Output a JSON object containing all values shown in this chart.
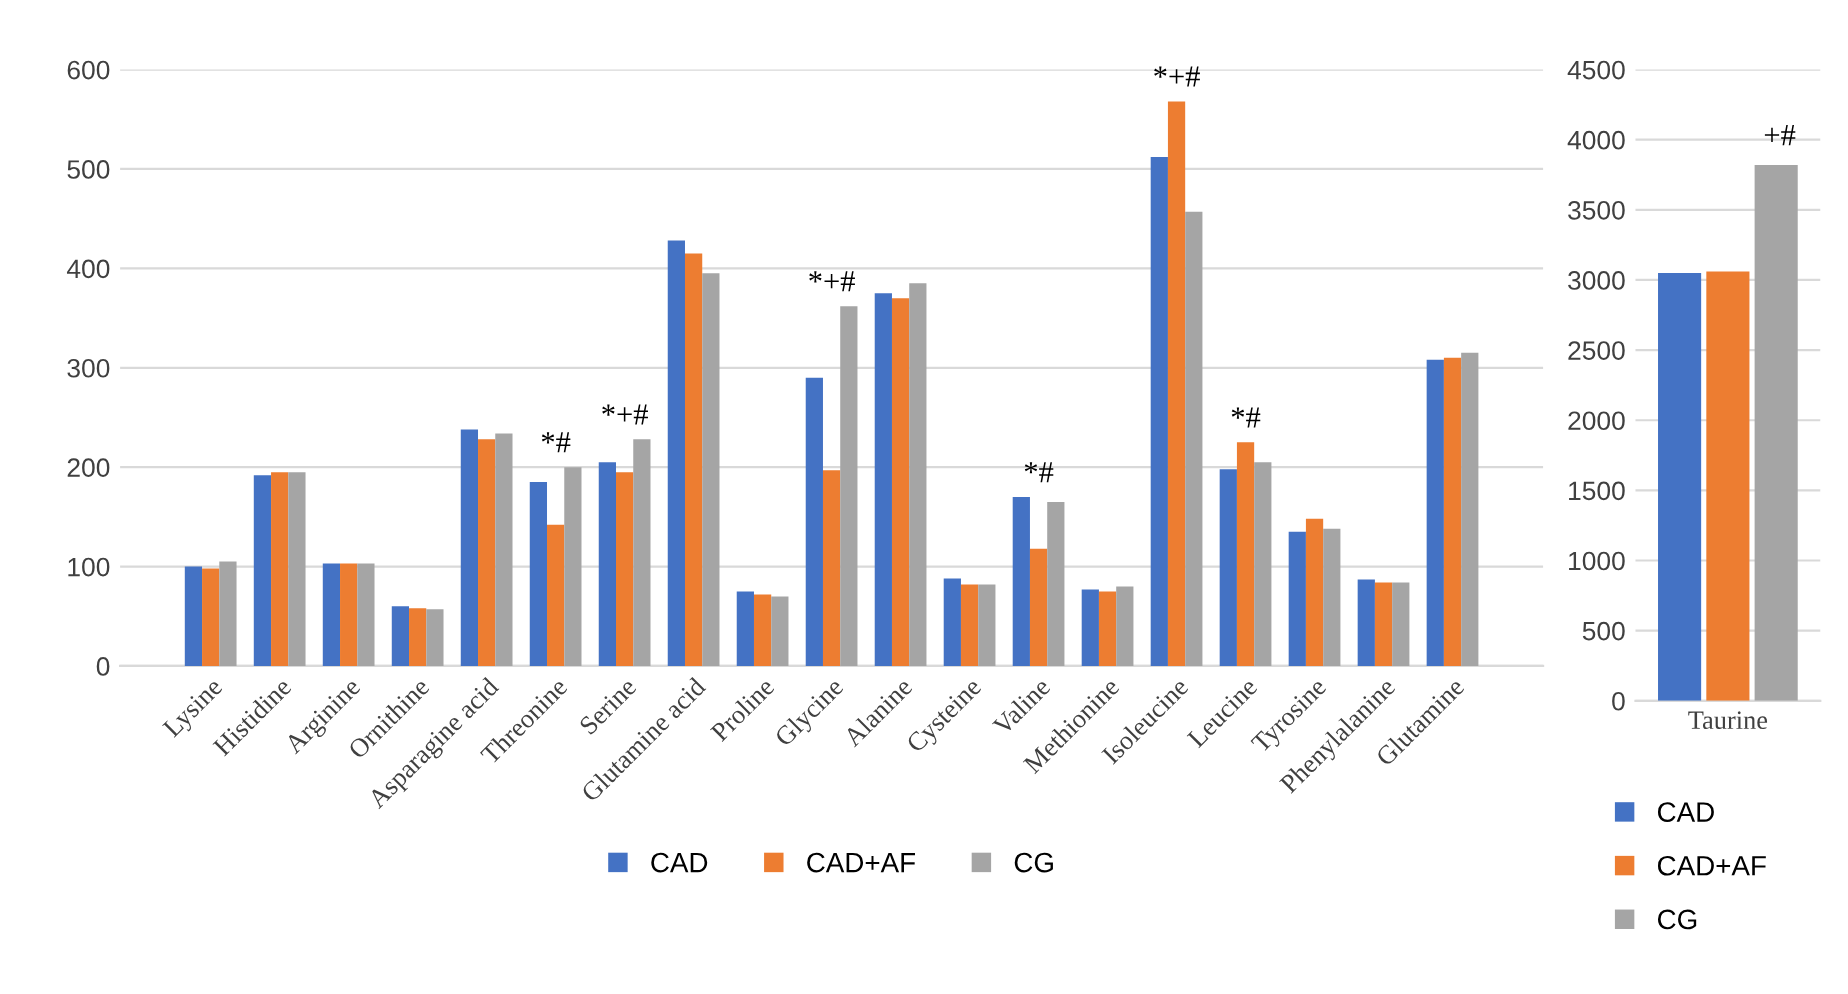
{
  "chart_data": [
    {
      "type": "bar",
      "categories": [
        "Lysine",
        "Histidine",
        "Arginine",
        "Ornithine",
        "Asparagine acid",
        "Threonine",
        "Serine",
        "Glutamine acid",
        "Proline",
        "Glycine",
        "Alanine",
        "Cysteine",
        "Valine",
        "Methionine",
        "Isoleucine",
        "Leucine",
        "Tyrosine",
        "Phenylalanine",
        "Glutamine"
      ],
      "series": [
        {
          "name": "CAD",
          "color": "#4472c4",
          "values": [
            100,
            192,
            103,
            60,
            238,
            185,
            205,
            428,
            75,
            290,
            375,
            88,
            170,
            77,
            512,
            198,
            135,
            87,
            308
          ]
        },
        {
          "name": "CAD+AF",
          "color": "#ed7d31",
          "values": [
            98,
            195,
            103,
            58,
            228,
            142,
            195,
            415,
            72,
            197,
            370,
            82,
            118,
            75,
            568,
            225,
            148,
            84,
            310
          ]
        },
        {
          "name": "CG",
          "color": "#a5a5a5",
          "values": [
            105,
            195,
            103,
            57,
            234,
            200,
            228,
            395,
            70,
            362,
            385,
            82,
            165,
            80,
            457,
            205,
            138,
            84,
            315
          ]
        }
      ],
      "ylim": [
        0,
        600
      ],
      "yticks": [
        0,
        100,
        200,
        300,
        400,
        500,
        600
      ],
      "grid": "y",
      "legend": "bottom",
      "annotations": [
        {
          "text": "*#",
          "x": "Threonine",
          "y": 200
        },
        {
          "text": "*+#",
          "x": "Serine",
          "y": 228
        },
        {
          "text": "*+#",
          "x": "Glycine",
          "y": 362
        },
        {
          "text": "*#",
          "x": "Valine",
          "y": 170
        },
        {
          "text": "*+#",
          "x": "Isoleucine",
          "y": 568
        },
        {
          "text": "*#",
          "x": "Leucine",
          "y": 225
        }
      ]
    },
    {
      "type": "bar",
      "categories": [
        "Taurine"
      ],
      "series": [
        {
          "name": "CAD",
          "color": "#4472c4",
          "values": [
            3050
          ]
        },
        {
          "name": "CAD+AF",
          "color": "#ed7d31",
          "values": [
            3060
          ]
        },
        {
          "name": "CG",
          "color": "#a5a5a5",
          "values": [
            3820
          ]
        }
      ],
      "ylim": [
        0,
        4500
      ],
      "yticks": [
        0,
        500,
        1000,
        1500,
        2000,
        2500,
        3000,
        3500,
        4000,
        4500
      ],
      "grid": "y",
      "legend": "bottom",
      "annotations": [
        "+#"
      ]
    }
  ]
}
